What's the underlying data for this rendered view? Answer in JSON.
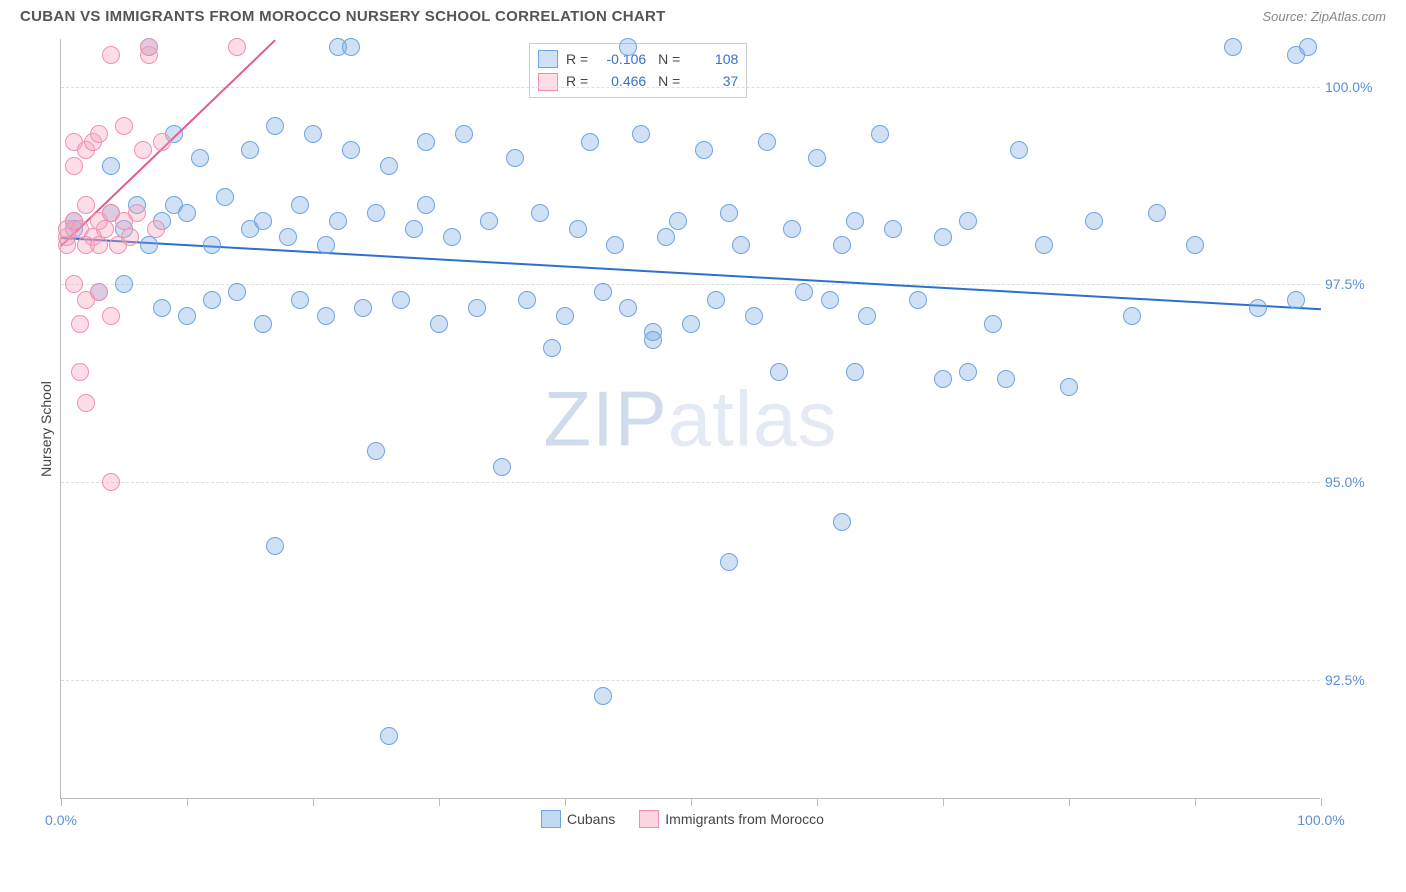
{
  "header": {
    "title": "CUBAN VS IMMIGRANTS FROM MOROCCO NURSERY SCHOOL CORRELATION CHART",
    "source": "Source: ZipAtlas.com"
  },
  "watermark": {
    "zip": "ZIP",
    "atlas": "atlas"
  },
  "chart": {
    "type": "scatter",
    "ylabel": "Nursery School",
    "background_color": "#ffffff",
    "grid_color": "#dddddd",
    "axis_color": "#bbbbbb",
    "xlim": [
      0,
      100
    ],
    "ylim": [
      91,
      100.6
    ],
    "yticks": [
      {
        "v": 92.5,
        "label": "92.5%"
      },
      {
        "v": 95.0,
        "label": "95.0%"
      },
      {
        "v": 97.5,
        "label": "97.5%"
      },
      {
        "v": 100.0,
        "label": "100.0%"
      }
    ],
    "xticks": [
      0,
      10,
      20,
      30,
      40,
      50,
      60,
      70,
      80,
      90,
      100
    ],
    "xtick_labels": {
      "0": "0.0%",
      "100": "100.0%"
    },
    "label_fontsize": 14,
    "label_color": "#5b8fd6",
    "series": [
      {
        "name": "Cubans",
        "fill": "rgba(120,170,230,0.35)",
        "stroke": "#6fa4e0",
        "marker_size": 18,
        "R": "-0.106",
        "N": "108",
        "trend": {
          "x1": 0,
          "y1": 98.1,
          "x2": 100,
          "y2": 97.2,
          "color": "#2f6fd0",
          "width": 2
        },
        "points": [
          [
            1,
            98.2
          ],
          [
            1,
            98.3
          ],
          [
            3,
            97.4
          ],
          [
            4,
            98.4
          ],
          [
            4,
            99.0
          ],
          [
            5,
            98.2
          ],
          [
            5,
            97.5
          ],
          [
            6,
            98.5
          ],
          [
            7,
            100.5
          ],
          [
            7,
            98.0
          ],
          [
            8,
            97.2
          ],
          [
            8,
            98.3
          ],
          [
            9,
            99.4
          ],
          [
            9,
            98.5
          ],
          [
            10,
            97.1
          ],
          [
            10,
            98.4
          ],
          [
            11,
            99.1
          ],
          [
            12,
            98.0
          ],
          [
            12,
            97.3
          ],
          [
            13,
            98.6
          ],
          [
            14,
            97.4
          ],
          [
            15,
            98.2
          ],
          [
            15,
            99.2
          ],
          [
            16,
            97.0
          ],
          [
            16,
            98.3
          ],
          [
            17,
            99.5
          ],
          [
            17,
            94.2
          ],
          [
            18,
            98.1
          ],
          [
            19,
            97.3
          ],
          [
            19,
            98.5
          ],
          [
            20,
            99.4
          ],
          [
            21,
            98.0
          ],
          [
            21,
            97.1
          ],
          [
            22,
            98.3
          ],
          [
            22,
            100.5
          ],
          [
            23,
            99.2
          ],
          [
            23,
            100.5
          ],
          [
            24,
            97.2
          ],
          [
            25,
            98.4
          ],
          [
            25,
            95.4
          ],
          [
            26,
            99.0
          ],
          [
            26,
            91.8
          ],
          [
            27,
            97.3
          ],
          [
            28,
            98.2
          ],
          [
            29,
            99.3
          ],
          [
            29,
            98.5
          ],
          [
            30,
            97.0
          ],
          [
            31,
            98.1
          ],
          [
            32,
            99.4
          ],
          [
            33,
            97.2
          ],
          [
            34,
            98.3
          ],
          [
            35,
            95.2
          ],
          [
            36,
            99.1
          ],
          [
            37,
            97.3
          ],
          [
            38,
            98.4
          ],
          [
            39,
            96.7
          ],
          [
            40,
            97.1
          ],
          [
            41,
            98.2
          ],
          [
            42,
            99.3
          ],
          [
            43,
            97.4
          ],
          [
            43,
            92.3
          ],
          [
            44,
            98.0
          ],
          [
            45,
            100.5
          ],
          [
            45,
            97.2
          ],
          [
            46,
            99.4
          ],
          [
            47,
            96.9
          ],
          [
            47,
            96.8
          ],
          [
            48,
            98.1
          ],
          [
            49,
            98.3
          ],
          [
            50,
            97.0
          ],
          [
            51,
            99.2
          ],
          [
            52,
            97.3
          ],
          [
            53,
            98.4
          ],
          [
            53,
            94.0
          ],
          [
            54,
            98.0
          ],
          [
            55,
            97.1
          ],
          [
            56,
            99.3
          ],
          [
            57,
            96.4
          ],
          [
            58,
            98.2
          ],
          [
            59,
            97.4
          ],
          [
            60,
            99.1
          ],
          [
            61,
            97.3
          ],
          [
            62,
            98.0
          ],
          [
            62,
            94.5
          ],
          [
            63,
            98.3
          ],
          [
            63,
            96.4
          ],
          [
            64,
            97.1
          ],
          [
            65,
            99.4
          ],
          [
            66,
            98.2
          ],
          [
            68,
            97.3
          ],
          [
            70,
            96.3
          ],
          [
            70,
            98.1
          ],
          [
            72,
            98.3
          ],
          [
            72,
            96.4
          ],
          [
            74,
            97.0
          ],
          [
            75,
            96.3
          ],
          [
            76,
            99.2
          ],
          [
            78,
            98.0
          ],
          [
            80,
            96.2
          ],
          [
            82,
            98.3
          ],
          [
            85,
            97.1
          ],
          [
            87,
            98.4
          ],
          [
            90,
            98.0
          ],
          [
            93,
            100.5
          ],
          [
            95,
            97.2
          ],
          [
            98,
            100.4
          ],
          [
            98,
            97.3
          ],
          [
            99,
            100.5
          ]
        ]
      },
      {
        "name": "Immigrants from Morocco",
        "fill": "rgba(248,160,185,0.35)",
        "stroke": "#f090b0",
        "marker_size": 18,
        "R": "0.466",
        "N": "37",
        "trend": {
          "x1": 0,
          "y1": 98.0,
          "x2": 17,
          "y2": 100.6,
          "color": "#e65a8a",
          "width": 2
        },
        "points": [
          [
            0.5,
            98.0
          ],
          [
            0.5,
            98.1
          ],
          [
            0.5,
            98.2
          ],
          [
            1,
            97.5
          ],
          [
            1,
            98.3
          ],
          [
            1,
            99.0
          ],
          [
            1,
            99.3
          ],
          [
            1.5,
            96.4
          ],
          [
            1.5,
            97.0
          ],
          [
            1.5,
            98.2
          ],
          [
            2,
            96.0
          ],
          [
            2,
            97.3
          ],
          [
            2,
            98.0
          ],
          [
            2,
            98.5
          ],
          [
            2,
            99.2
          ],
          [
            2.5,
            98.1
          ],
          [
            2.5,
            99.3
          ],
          [
            3,
            97.4
          ],
          [
            3,
            98.0
          ],
          [
            3,
            98.3
          ],
          [
            3,
            99.4
          ],
          [
            3.5,
            98.2
          ],
          [
            4,
            95.0
          ],
          [
            4,
            97.1
          ],
          [
            4,
            98.4
          ],
          [
            4,
            100.4
          ],
          [
            4.5,
            98.0
          ],
          [
            5,
            98.3
          ],
          [
            5,
            99.5
          ],
          [
            5.5,
            98.1
          ],
          [
            6,
            98.4
          ],
          [
            6.5,
            99.2
          ],
          [
            7,
            100.4
          ],
          [
            7,
            100.5
          ],
          [
            7.5,
            98.2
          ],
          [
            8,
            99.3
          ],
          [
            14,
            100.5
          ]
        ]
      }
    ],
    "legend_bottom": [
      {
        "label": "Cubans",
        "fill": "rgba(120,170,230,0.45)",
        "stroke": "#6fa4e0"
      },
      {
        "label": "Immigrants from Morocco",
        "fill": "rgba(248,160,185,0.45)",
        "stroke": "#f090b0"
      }
    ]
  }
}
